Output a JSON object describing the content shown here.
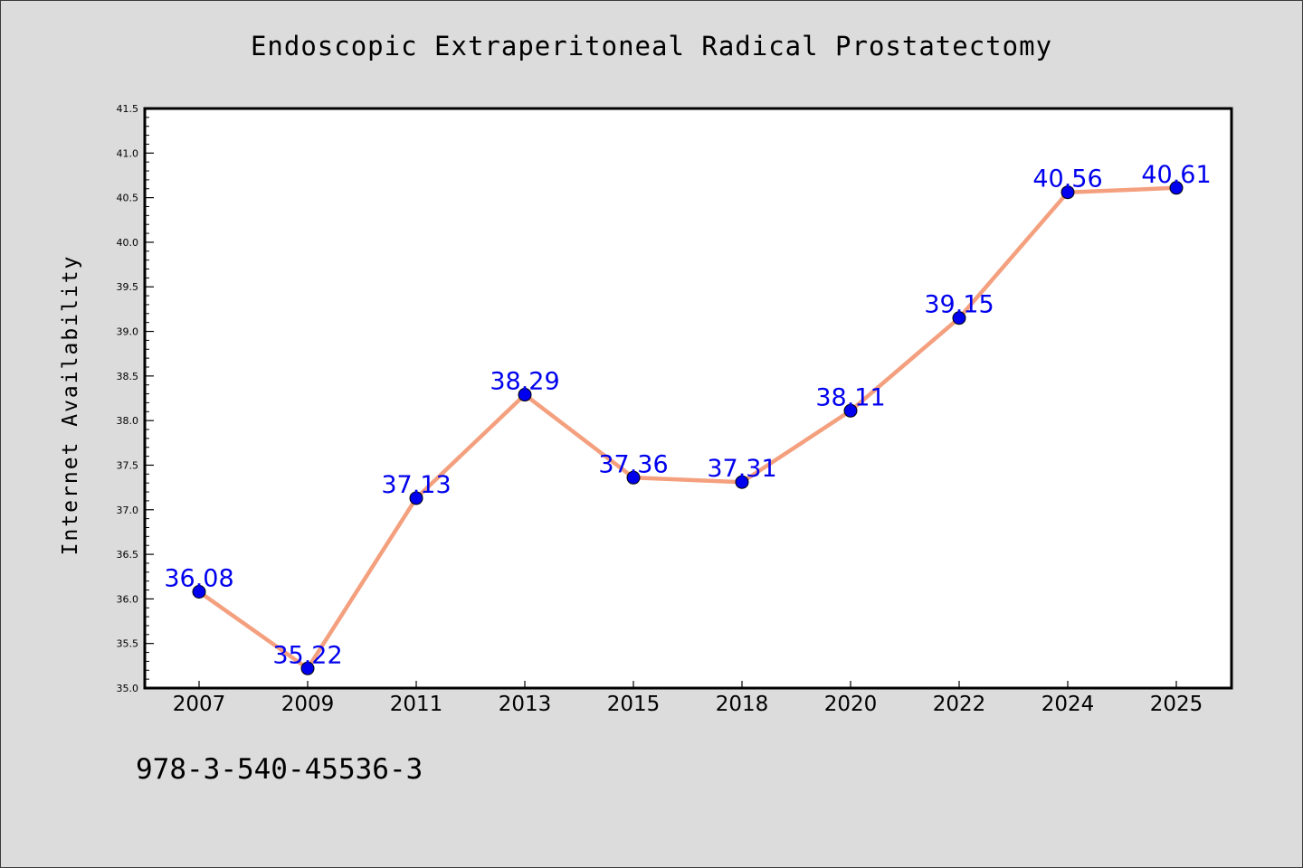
{
  "chart_data": {
    "type": "line",
    "title": "Endoscopic Extraperitoneal Radical Prostatectomy",
    "xlabel": "",
    "ylabel": "Internet Availability",
    "categories": [
      "2007",
      "2009",
      "2011",
      "2013",
      "2015",
      "2018",
      "2020",
      "2022",
      "2024",
      "2025"
    ],
    "values": [
      36.08,
      35.22,
      37.13,
      38.29,
      37.36,
      37.31,
      38.11,
      39.15,
      40.56,
      40.61
    ],
    "data_labels": [
      "36.08",
      "35.22",
      "37.13",
      "38.29",
      "37.36",
      "37.31",
      "38.11",
      "39.15",
      "40.56",
      "40.61"
    ],
    "ylim": [
      35.0,
      41.5
    ],
    "yticks": [
      "35.0",
      "35.5",
      "36.0",
      "36.5",
      "37.0",
      "37.5",
      "38.0",
      "38.5",
      "39.0",
      "39.5",
      "40.0",
      "40.5",
      "41.0",
      "41.5"
    ],
    "grid": false,
    "line_color": "#f4a07e",
    "marker_color": "#0000ee",
    "label_color": "#0000ee"
  },
  "footer": {
    "isbn": "978-3-540-45536-3"
  }
}
